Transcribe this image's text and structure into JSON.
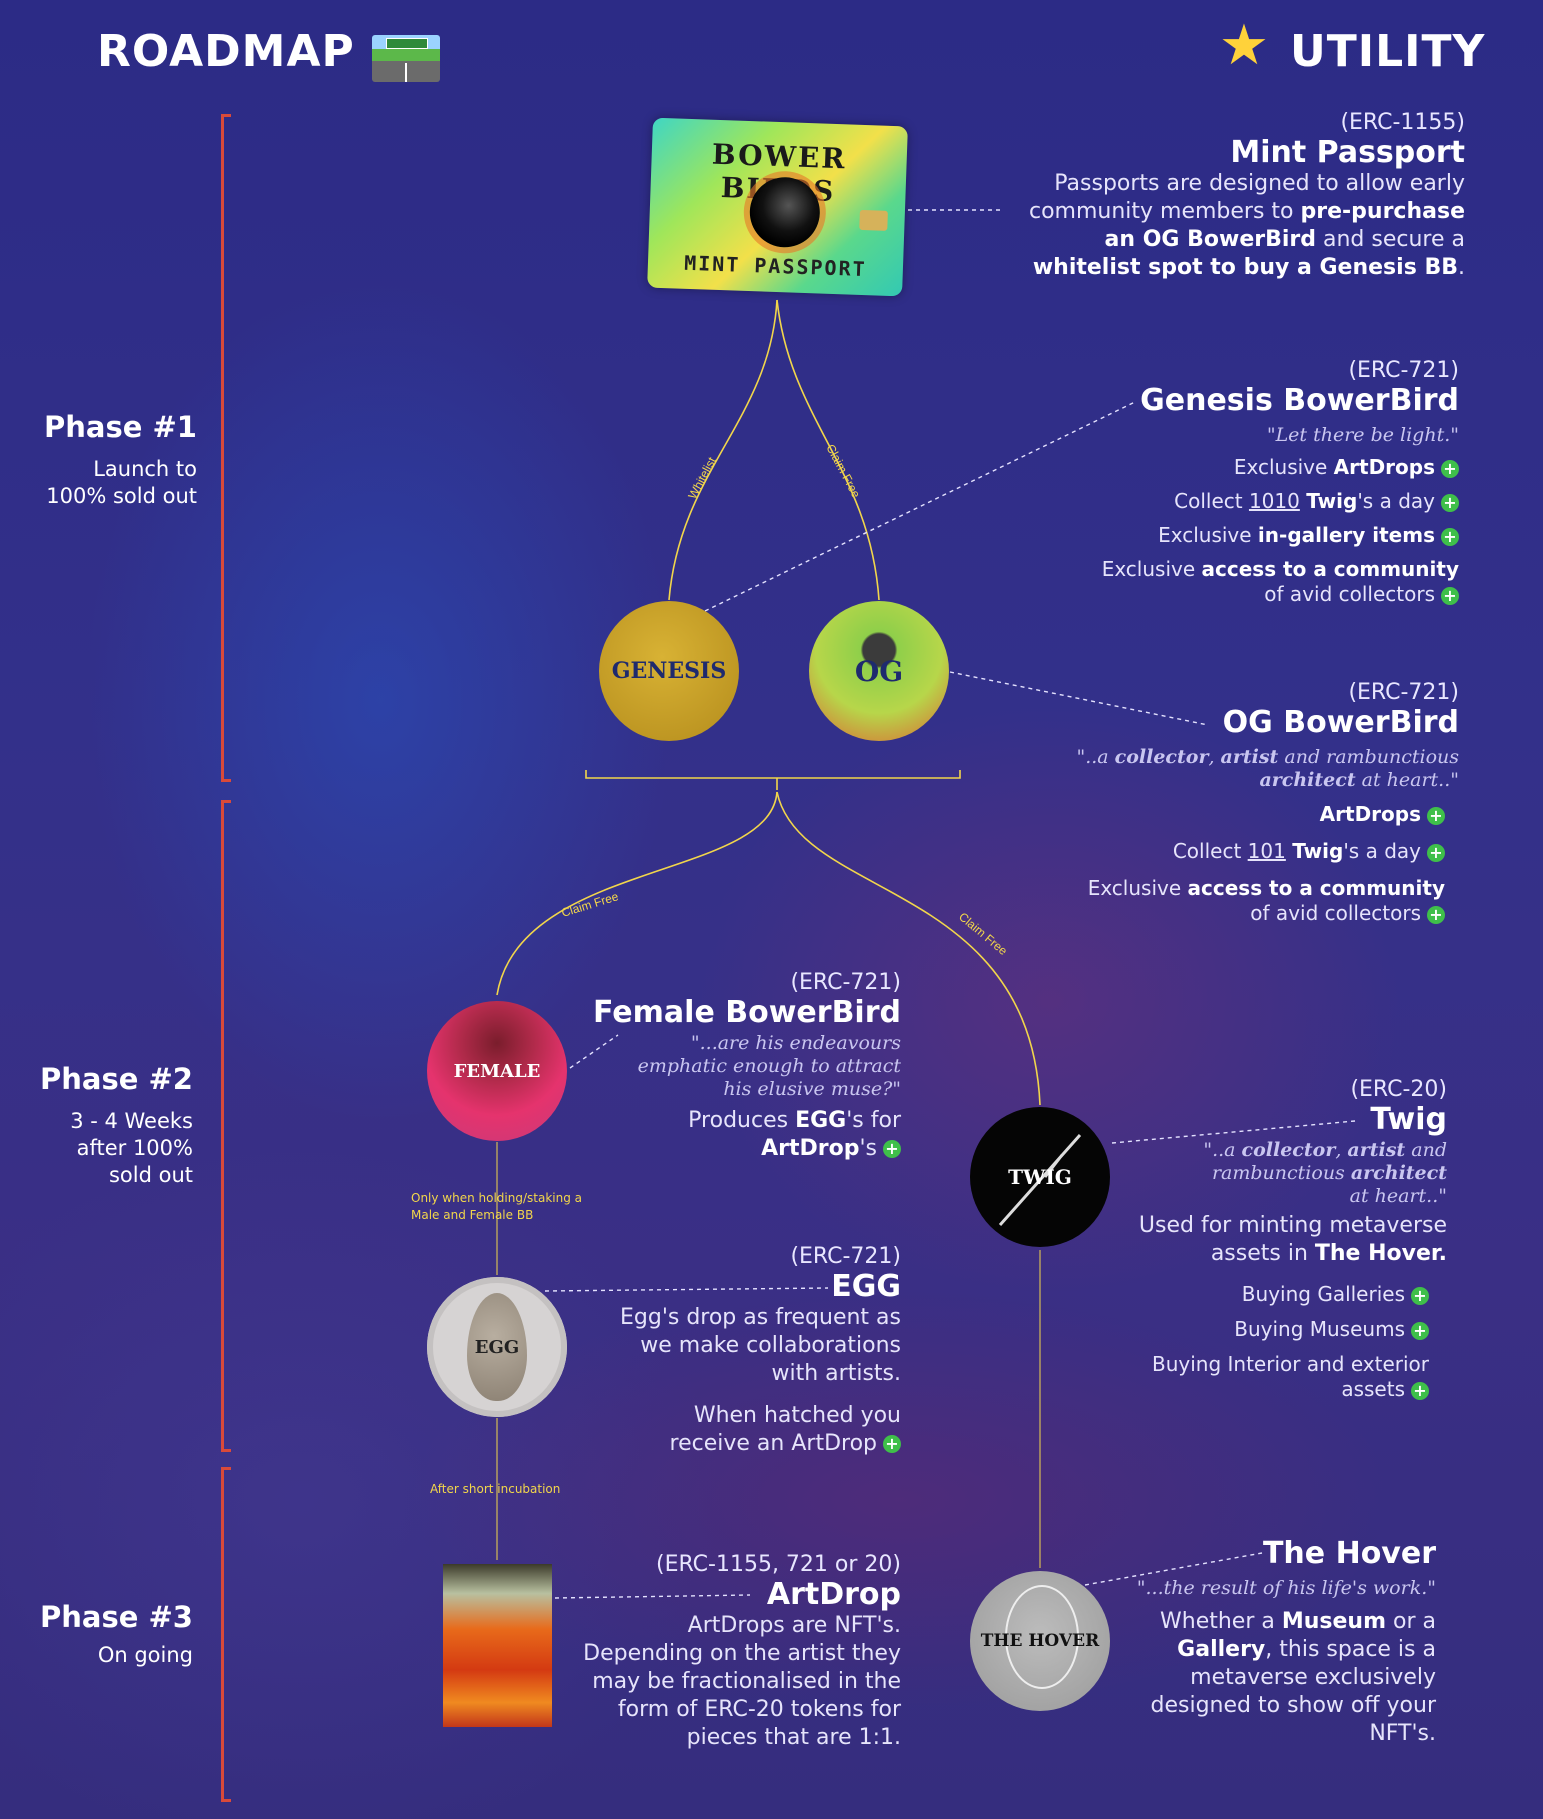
{
  "header": {
    "roadmap_title": "ROADMAP",
    "utility_title": "UTILITY",
    "roadmap_icon": "motorway-icon",
    "utility_icon": "glowing-star-icon"
  },
  "phases": [
    {
      "title": "Phase #1",
      "subtitle_lines": [
        "Launch to",
        "100% sold out"
      ]
    },
    {
      "title": "Phase #2",
      "subtitle_lines": [
        "3 - 4 Weeks",
        "after 100%",
        "sold out"
      ]
    },
    {
      "title": "Phase #3",
      "subtitle_lines": [
        "On going"
      ]
    }
  ],
  "nodes": {
    "card": {
      "title": "BOWER BIRDS",
      "subtitle": "MINT PASSPORT"
    },
    "genesis": "GENESIS",
    "og": "OG",
    "female": "FEMALE",
    "egg": "EGG",
    "twig": "TWIG",
    "hover": "THE HOVER"
  },
  "edge_labels": {
    "whitelist": "Whitelist",
    "claim_free_1": "Claim Free",
    "claim_free_2": "Claim Free",
    "claim_free_3": "Claim Free",
    "holding_line1": "Only when holding/staking a",
    "holding_line2": "Male and Female BB",
    "incubation": "After short incubation"
  },
  "mint_passport": {
    "erc": "(ERC-1155)",
    "name": "Mint Passport",
    "desc_lines": [
      "Passports are designed to allow early",
      "community members to <b>pre-purchase</b>",
      "<b>an OG BowerBird</b> and secure a",
      "<b>whitelist spot to buy a Genesis BB</b>."
    ]
  },
  "genesis_bowerbird": {
    "erc": "(ERC-721)",
    "name": "Genesis BowerBird",
    "quote": "\"Let there be light.\"",
    "perks": [
      "Exclusive <b>ArtDrops</b>",
      "Collect <u>1010</u> <b>Twig</b>'s a day",
      "Exclusive <b>in-gallery items</b>",
      "Exclusive <b>access to a community</b><br>of avid collectors"
    ]
  },
  "og_bowerbird": {
    "erc": "(ERC-721)",
    "name": "OG BowerBird",
    "quote": "\"..a <b>collector</b>, <b>artist</b> and rambunctious<br><b>architect</b> at heart..\"",
    "perks": [
      "<b>ArtDrops</b>",
      "Collect <u>101</u> <b>Twig</b>'s a day",
      "Exclusive <b>access to a community</b><br>of avid collectors"
    ]
  },
  "female_bowerbird": {
    "erc": "(ERC-721)",
    "name": "Female BowerBird",
    "quote": "\"...are his endeavours<br>emphatic enough to attract<br>his elusive muse?\"",
    "desc": "Produces <b>EGG</b>'s for<br><b>ArtDrop</b>'s"
  },
  "egg": {
    "erc": "(ERC-721)",
    "name": "EGG",
    "desc": "Egg's drop as frequent as<br>we make collaborations<br>with artists.",
    "desc2": "When hatched you<br>receive an ArtDrop"
  },
  "twig": {
    "erc": "(ERC-20)",
    "name": "Twig",
    "quote": "\"..a <b>collector</b>, <b>artist</b> and<br>rambunctious <b>architect</b><br>at heart..\"",
    "desc": "Used for minting metaverse<br>assets in <b>The Hover.</b>",
    "perks": [
      "Buying Galleries",
      "Buying Museums",
      "Buying Interior and exterior<br>assets"
    ]
  },
  "artdrop": {
    "erc": "(ERC-1155, 721 or 20)",
    "name": "ArtDrop",
    "desc": "ArtDrops are NFT's.<br>Depending on the artist they<br>may be fractionalised in the<br>form of ERC-20 tokens for<br>pieces that are 1:1."
  },
  "the_hover": {
    "name": "The Hover",
    "quote": "\"...the result of his life's work.\"",
    "desc": "Whether a <b>Museum</b> or a<br><b>Gallery</b>,  this space is a<br>metaverse exclusively<br>designed to show off your<br>NFT's."
  },
  "colors": {
    "background": "#2b2a7a",
    "accent_line": "#f2d64b",
    "bracket": "#d94a3a",
    "perk_plus": "#3fbf4a",
    "genesis_node": "#c9a227",
    "female_node": "#e0306a",
    "twig_node": "#050505",
    "hover_node": "#a8a8a8"
  }
}
